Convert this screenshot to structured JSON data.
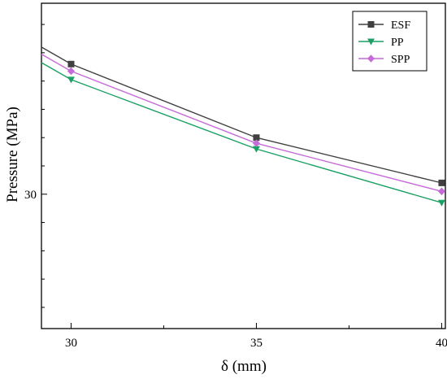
{
  "chart_data": {
    "type": "line",
    "title": "",
    "xlabel": "δ (mm)",
    "ylabel": "Pressure (MPa)",
    "x": [
      30,
      35,
      40
    ],
    "xlim": [
      29.2,
      40.1
    ],
    "ylim": [
      20.5,
      43.5
    ],
    "x_ticks": [
      30,
      35,
      40
    ],
    "y_tick_labels": [
      {
        "value": 30,
        "label": "30"
      }
    ],
    "y_minor_ticks": [
      22,
      24,
      26,
      28,
      32,
      34,
      36,
      38,
      40,
      42
    ],
    "grid": false,
    "legend_position": "top-right",
    "series": [
      {
        "name": "ESF",
        "color": "#404040",
        "marker": "square",
        "values": [
          39.2,
          34.0,
          30.8
        ],
        "x_extended_left": 29.2,
        "value_extended_left": 40.4
      },
      {
        "name": "PP",
        "color": "#1aa064",
        "marker": "triangle-down",
        "values": [
          38.1,
          33.2,
          29.4
        ],
        "x_extended_left": 29.2,
        "value_extended_left": 39.3
      },
      {
        "name": "SPP",
        "color": "#c56ad9",
        "marker": "diamond",
        "values": [
          38.7,
          33.6,
          30.2
        ],
        "x_extended_left": 29.2,
        "value_extended_left": 39.9
      }
    ]
  }
}
